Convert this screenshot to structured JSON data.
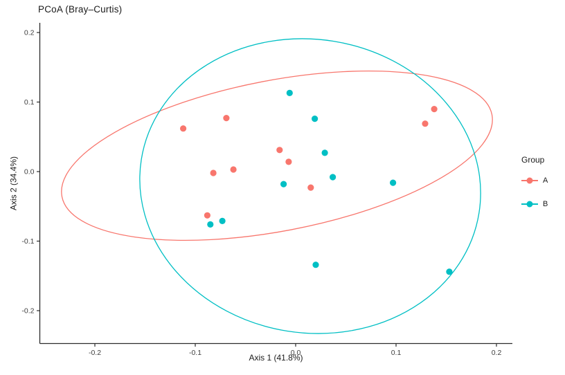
{
  "chart_data": {
    "type": "scatter",
    "title": "PCoA (Bray–Curtis)",
    "xlabel": "Axis 1 (41.8%)",
    "ylabel": "Axis 2 (34.4%)",
    "x_ticks": [
      "-0.2",
      "-0.1",
      "0.0",
      "0.1",
      "0.2"
    ],
    "y_ticks": [
      "0.2",
      "0.1",
      "0.0",
      "-0.1",
      "-0.2"
    ],
    "xlim": [
      -0.255,
      0.216
    ],
    "ylim": [
      -0.249,
      0.214
    ],
    "grid": false,
    "background": "#ffffff",
    "legend": {
      "title": "Group",
      "position": "right",
      "entries": [
        {
          "label": "A",
          "color": "#F8766D"
        },
        {
          "label": "B",
          "color": "#00BFC4"
        }
      ]
    },
    "series": [
      {
        "name": "A",
        "color": "#F8766D",
        "points": [
          [
            -0.112,
            0.062
          ],
          [
            -0.069,
            0.077
          ],
          [
            -0.016,
            0.031
          ],
          [
            -0.007,
            0.014
          ],
          [
            -0.082,
            -0.002
          ],
          [
            -0.062,
            0.003
          ],
          [
            0.015,
            -0.023
          ],
          [
            -0.088,
            -0.063
          ],
          [
            0.138,
            0.09
          ],
          [
            0.129,
            0.069
          ]
        ]
      },
      {
        "name": "B",
        "color": "#00BFC4",
        "points": [
          [
            -0.006,
            0.113
          ],
          [
            0.019,
            0.076
          ],
          [
            0.029,
            0.027
          ],
          [
            0.037,
            -0.008
          ],
          [
            0.097,
            -0.016
          ],
          [
            -0.012,
            -0.018
          ],
          [
            -0.085,
            -0.076
          ],
          [
            -0.073,
            -0.071
          ],
          [
            0.02,
            -0.134
          ],
          [
            0.153,
            -0.144
          ]
        ]
      }
    ],
    "ellipses": [
      {
        "group": "A",
        "color": "#F8766D",
        "cx": -0.0186,
        "cy": 0.0229,
        "rx": 0.218,
        "ry": 0.1085,
        "rotation_deg": -10.8
      },
      {
        "group": "B",
        "color": "#00BFC4",
        "cx": 0.0145,
        "cy": -0.0209,
        "rx": 0.1703,
        "ry": 0.211,
        "rotation_deg": 9.0
      }
    ]
  }
}
